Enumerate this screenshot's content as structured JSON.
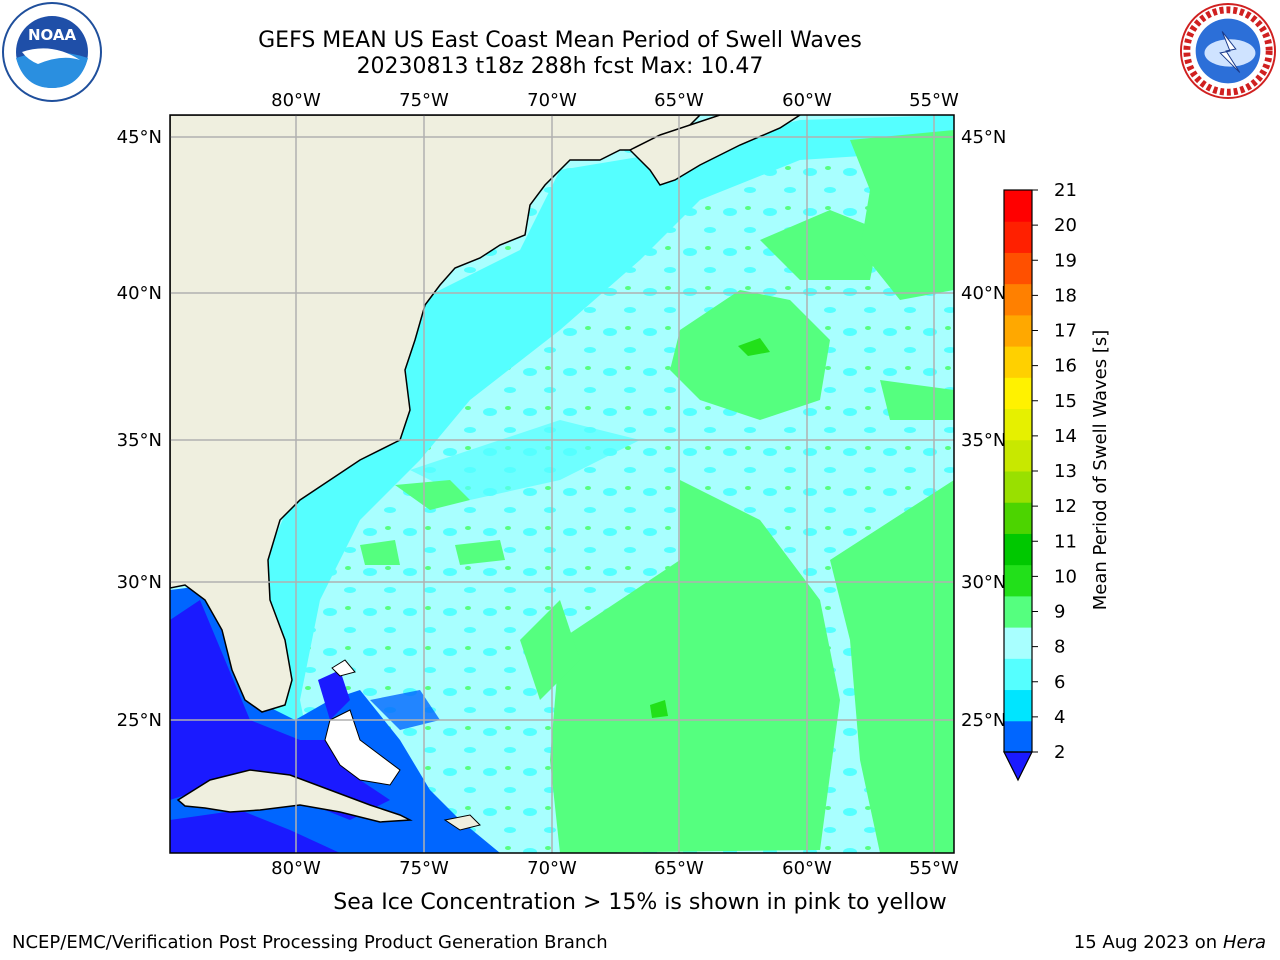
{
  "title": {
    "line1": "GEFS MEAN US East Coast Mean Period of Swell Waves",
    "line2": "20230813 t18z 288h fcst   Max: 10.47"
  },
  "map": {
    "lon_range": [
      -85,
      -54.3
    ],
    "lat_range": [
      20.4,
      45.8
    ],
    "lon_ticks": [
      "80°W",
      "75°W",
      "70°W",
      "65°W",
      "60°W",
      "55°W"
    ],
    "lat_ticks": [
      "45°N",
      "40°N",
      "35°N",
      "30°N",
      "25°N"
    ],
    "gridlines": true,
    "land_color": "#efefdf",
    "logos": [
      "noaa-logo",
      "nws-logo"
    ]
  },
  "colorbar": {
    "label": "Mean Period of Swell Waves [s]",
    "tick_labels": [
      "2",
      "4",
      "6",
      "8",
      "9",
      "10",
      "11",
      "12",
      "13",
      "14",
      "15",
      "16",
      "17",
      "18",
      "19",
      "20",
      "21"
    ],
    "colors": [
      "#0066ff",
      "#00e5ff",
      "#55ffff",
      "#a8ffff",
      "#55ff7f",
      "#22e01a",
      "#00c800",
      "#4cd400",
      "#99e000",
      "#c8e800",
      "#e6f000",
      "#fff200",
      "#ffd000",
      "#ffa800",
      "#ff8000",
      "#ff5000",
      "#ff2000",
      "#ff0000"
    ],
    "extend_min_color": "#1a1aff"
  },
  "footer": {
    "note": "Sea Ice Concentration > 15% is shown in pink to yellow",
    "credit": "NCEP/EMC/Verification Post Processing Product Generation Branch",
    "date": "15 Aug 2023 on",
    "machine": "Hera"
  }
}
